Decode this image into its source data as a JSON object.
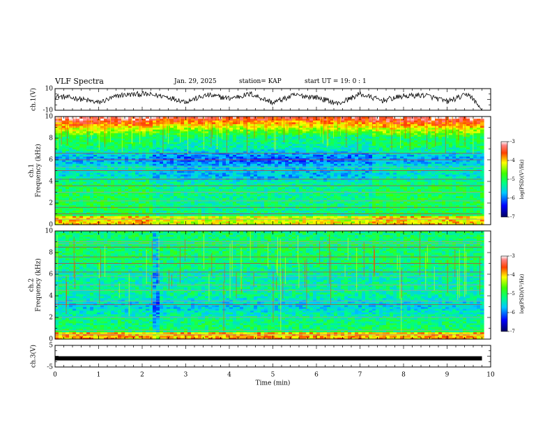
{
  "header": {
    "title": "VLF Spectra",
    "date": "Jan. 29, 2025",
    "station": "station= KAP",
    "start": "start  UT =  19: 0  : 1"
  },
  "chart_data": [
    {
      "type": "line",
      "panel": "ch1-waveform",
      "ylabel": "ch.1(V)",
      "ylim": [
        -10,
        10
      ],
      "yticks": [
        "10",
        "-10"
      ],
      "xlim": [
        0,
        10
      ],
      "description_of_values": "noisy waveform mostly between about -6 and +6 V, drops to -10 at ~9.8 min",
      "x": [
        0,
        0.5,
        1,
        1.5,
        2,
        2.5,
        3,
        3.5,
        4,
        4.5,
        5,
        5.5,
        6,
        6.5,
        7,
        7.5,
        8,
        8.5,
        9,
        9.5,
        9.8
      ],
      "y": [
        3,
        1,
        -3,
        4,
        5,
        3,
        -2,
        4,
        1,
        5,
        -3,
        4,
        2,
        -4,
        5,
        -1,
        3,
        4,
        -2,
        5,
        -10
      ]
    },
    {
      "type": "heatmap",
      "panel": "ch1-spectrogram",
      "ylabel": "ch.1\nFrequency (kHz)",
      "ylim": [
        0,
        10
      ],
      "yticks": [
        "0",
        "2",
        "4",
        "6",
        "8",
        "10"
      ],
      "xlim": [
        0,
        10
      ],
      "colorbar": {
        "label": "log(PSD)(V²/Hz)",
        "range": [
          -7,
          -3
        ],
        "ticks": [
          "-3",
          "-4",
          "-5",
          "-6",
          "-7"
        ]
      }
    },
    {
      "type": "heatmap",
      "panel": "ch2-spectrogram",
      "ylabel": "ch.2\nFrequency (kHz)",
      "ylim": [
        0,
        10
      ],
      "yticks": [
        "0",
        "2",
        "4",
        "6",
        "8",
        "10"
      ],
      "xlim": [
        0,
        10
      ],
      "colorbar": {
        "label": "log(PSD)(V²/Hz)",
        "range": [
          -7,
          -3
        ],
        "ticks": [
          "-3",
          "-4",
          "-5",
          "-6",
          "-7"
        ]
      }
    },
    {
      "type": "line",
      "panel": "ch3-waveform",
      "ylabel": "ch.3(V)",
      "ylim": [
        -5,
        5
      ],
      "yticks": [
        "5",
        "-5"
      ],
      "xlim": [
        0,
        10
      ],
      "x": [
        0,
        9.8
      ],
      "y": [
        -1,
        -1
      ]
    }
  ],
  "xaxis": {
    "label": "Time  (min)",
    "ticks": [
      "0",
      "1",
      "2",
      "3",
      "4",
      "5",
      "6",
      "7",
      "8",
      "9",
      "10"
    ],
    "range": [
      0,
      10
    ]
  },
  "colors": {
    "scale": [
      "#000080",
      "#0000ff",
      "#00a0ff",
      "#00ffff",
      "#00ff00",
      "#ffff00",
      "#ff8000",
      "#ff0000",
      "#ffffff"
    ]
  }
}
